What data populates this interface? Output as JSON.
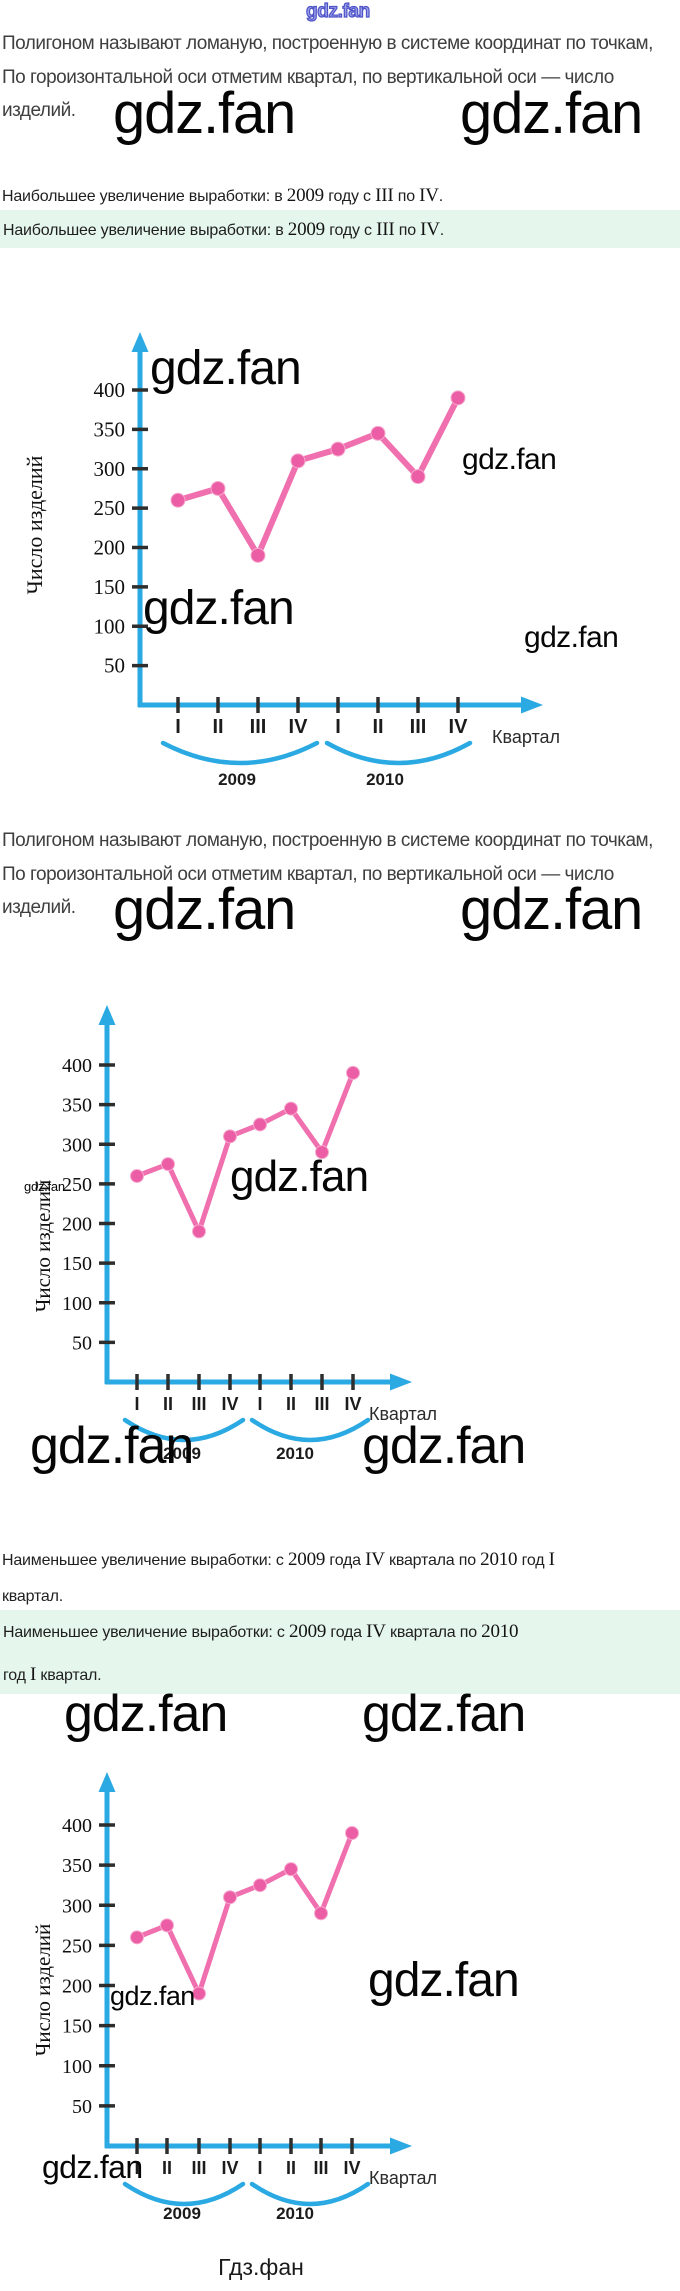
{
  "watermark": {
    "text": "gdz.fan",
    "site_footer": "Гдз.фан",
    "color": "#060606",
    "outline_fill": "#9aa0e6",
    "outline_stroke": "#4e52c8"
  },
  "intro": {
    "line1": "Полигоном называют ломаную, построенную в системе координат по точкам,",
    "line2": "По гороизонтальной оси отметим квартал, по вертикальной оси — число",
    "line3": "изделий."
  },
  "answers": {
    "highlight_color": "#e5f6ec",
    "best": {
      "parts": [
        {
          "t": "Наибольшее увеличение выработки: в ",
          "f": "sans"
        },
        {
          "t": "2009",
          "f": "serif"
        },
        {
          "t": " году с ",
          "f": "sans"
        },
        {
          "t": "III",
          "f": "serif"
        },
        {
          "t": " по ",
          "f": "sans"
        },
        {
          "t": "IV",
          "f": "serif"
        },
        {
          "t": ".",
          "f": "sans"
        }
      ]
    },
    "least": {
      "plain_lines": [
        [
          {
            "t": "Наименьшее увеличение выработки: с ",
            "f": "sans"
          },
          {
            "t": "2009",
            "f": "serif"
          },
          {
            "t": " года ",
            "f": "sans"
          },
          {
            "t": "IV",
            "f": "serif"
          },
          {
            "t": " квартала по ",
            "f": "sans"
          },
          {
            "t": "2010",
            "f": "serif"
          },
          {
            "t": " год ",
            "f": "sans"
          },
          {
            "t": "I",
            "f": "serif"
          }
        ],
        [
          {
            "t": "квартал.",
            "f": "sans"
          }
        ]
      ],
      "highlight_lines": [
        [
          {
            "t": "Наименьшее увеличение выработки: с ",
            "f": "sans"
          },
          {
            "t": "2009",
            "f": "serif"
          },
          {
            "t": " года ",
            "f": "sans"
          },
          {
            "t": "IV",
            "f": "serif"
          },
          {
            "t": " квартала по ",
            "f": "sans"
          },
          {
            "t": "2010",
            "f": "serif"
          }
        ],
        [
          {
            "t": "год ",
            "f": "sans"
          },
          {
            "t": "I",
            "f": "serif"
          },
          {
            "t": " квартал.",
            "f": "sans"
          }
        ]
      ]
    }
  },
  "chart_data": {
    "type": "line",
    "y_axis_label": "Число изделий",
    "x_axis_label": "Квартал",
    "categories": [
      "I",
      "II",
      "III",
      "IV",
      "I",
      "II",
      "III",
      "IV"
    ],
    "year_groups": [
      {
        "label": "2009",
        "span": [
          0,
          3
        ]
      },
      {
        "label": "2010",
        "span": [
          4,
          7
        ]
      }
    ],
    "values": [
      260,
      275,
      190,
      310,
      325,
      345,
      290,
      390
    ],
    "y_ticks": [
      400,
      350,
      300,
      250,
      200,
      150,
      100,
      50
    ],
    "ylim": [
      0,
      450
    ],
    "grid": false,
    "legend": false,
    "instances": 3,
    "colors": {
      "axis": "#2ba9e2",
      "line": "#f06fae",
      "dot": "#eb5ea5",
      "dot_ring": "#f7a9cf",
      "tick": "#2e2e2e",
      "text": "#1c1c1c"
    }
  }
}
